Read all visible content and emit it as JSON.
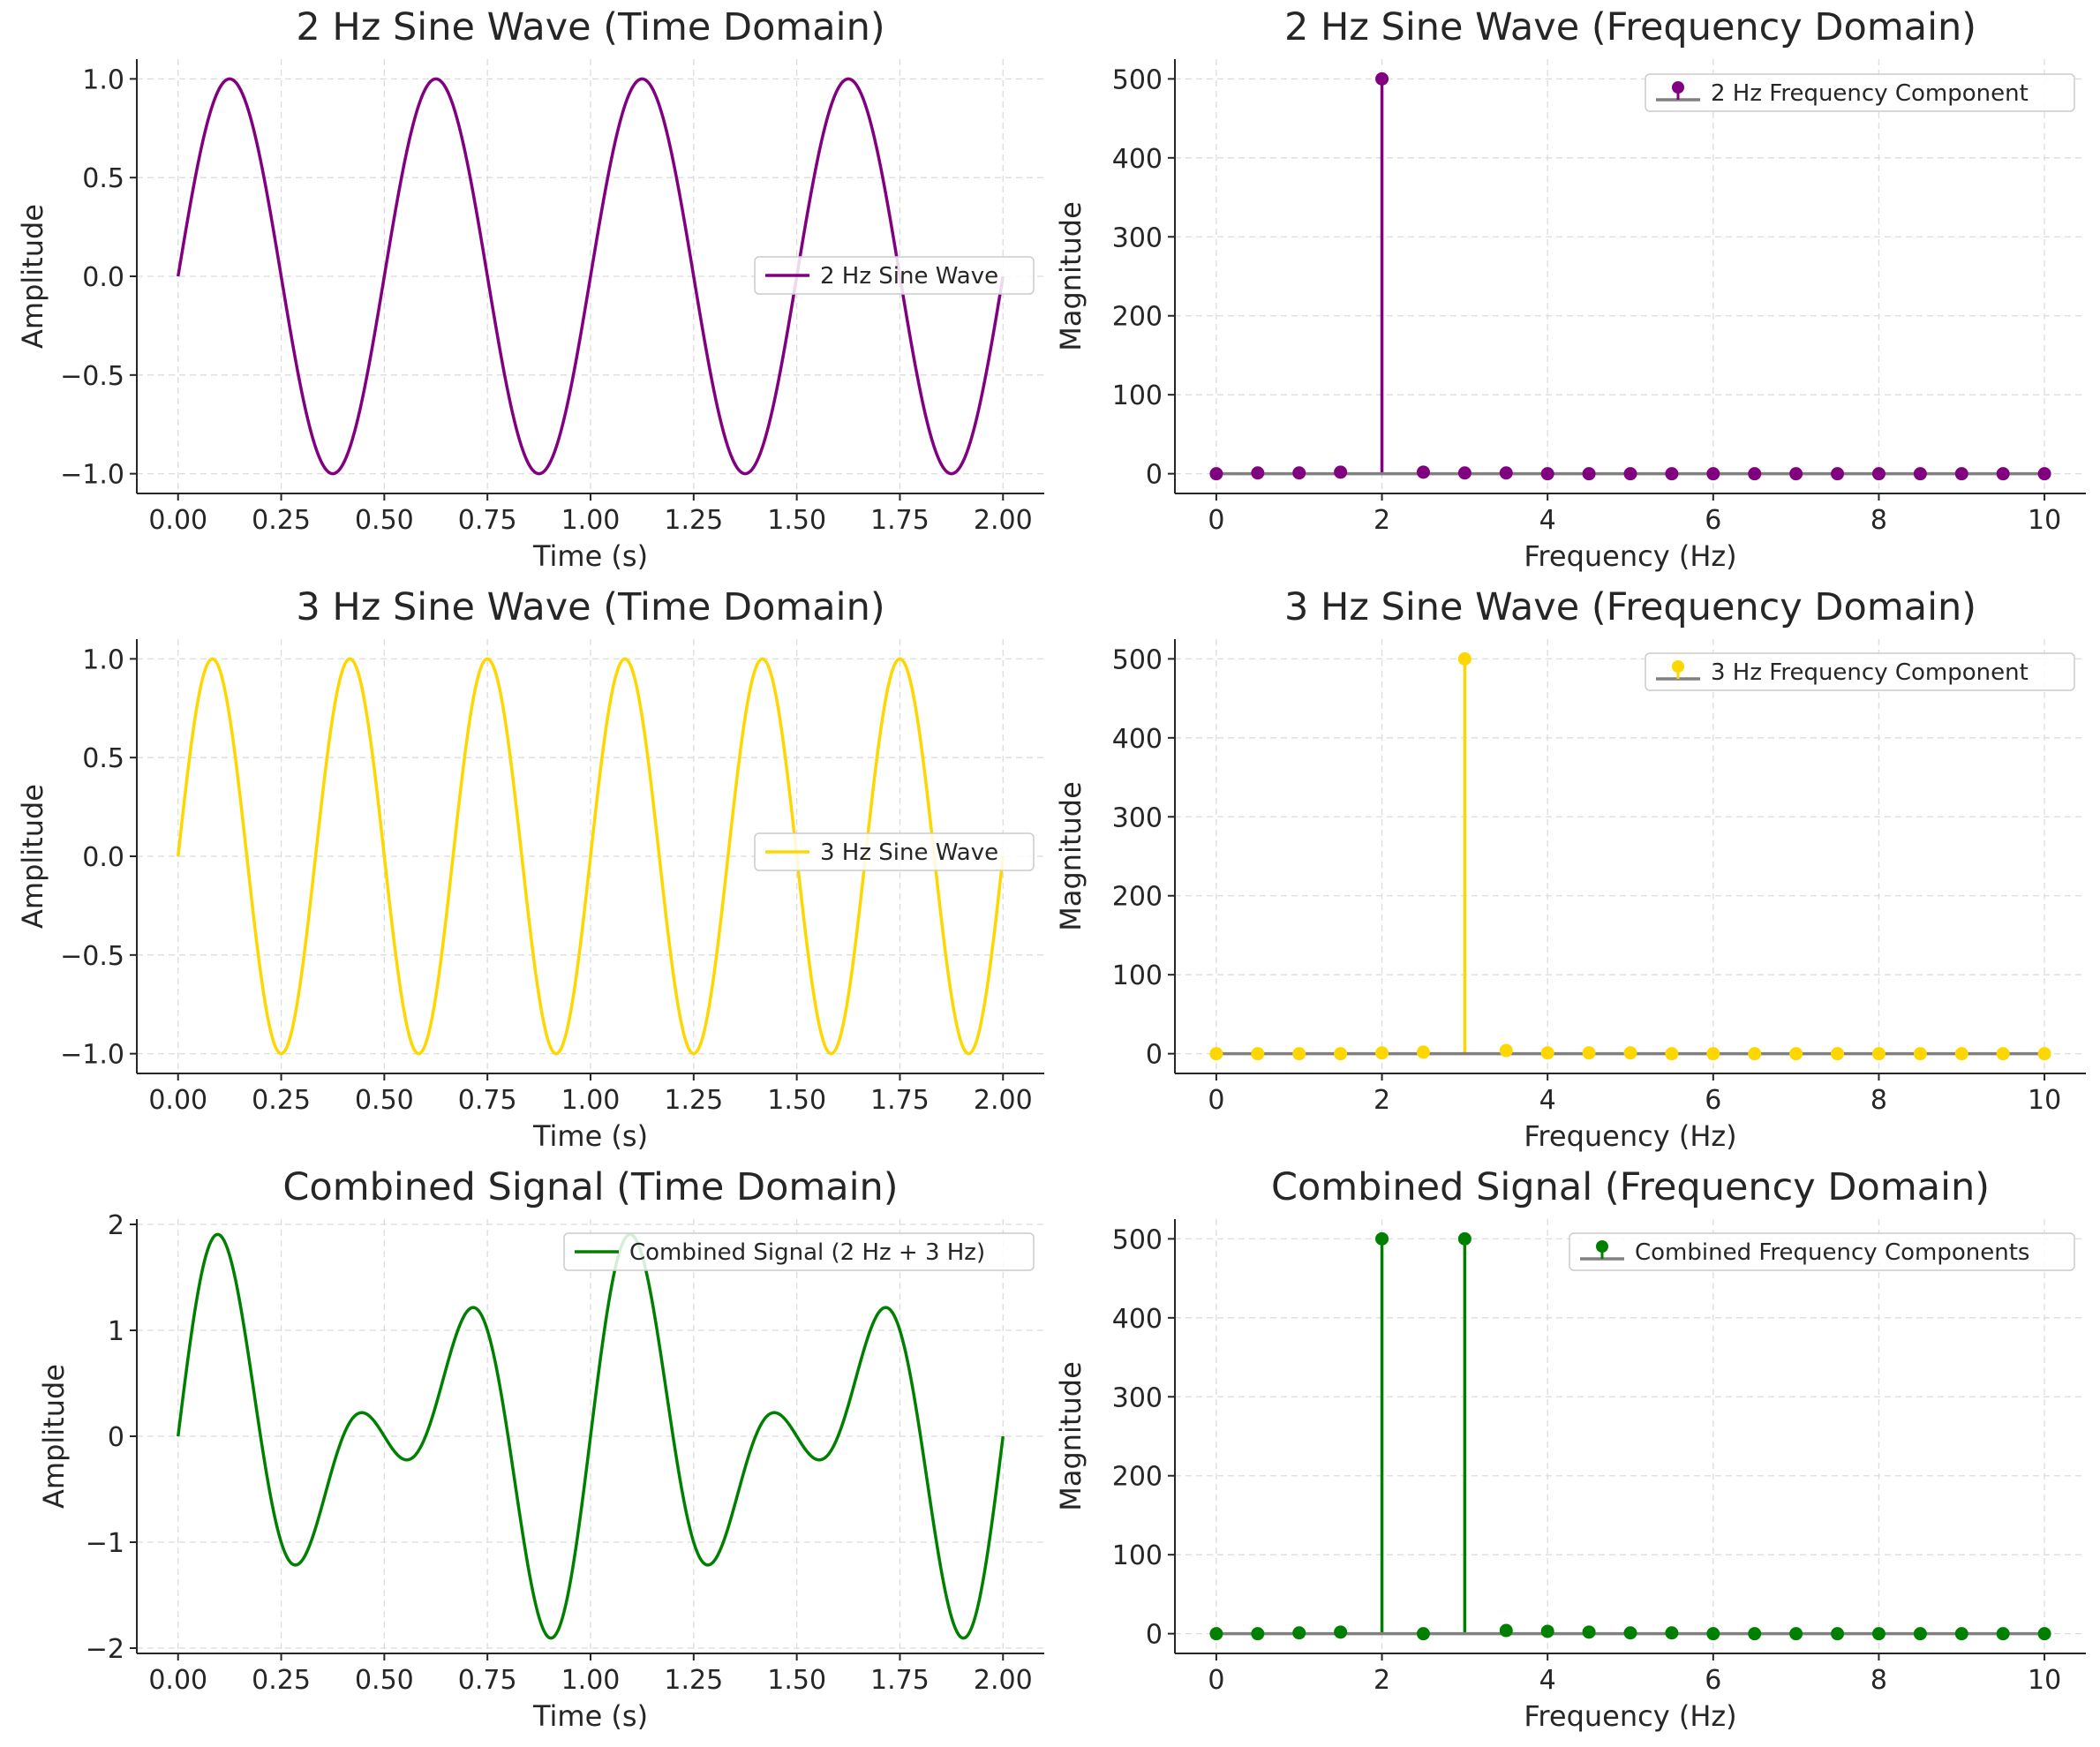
{
  "colors": {
    "purple": "#800080",
    "gold": "#FFD700",
    "green": "#008000",
    "baseline": "#808080"
  },
  "chart_data": [
    {
      "id": "sine2-time",
      "type": "line",
      "title": "2 Hz Sine Wave (Time Domain)",
      "xlabel": "Time (s)",
      "ylabel": "Amplitude",
      "xlim": [
        -0.1,
        2.1
      ],
      "ylim": [
        -1.1,
        1.1
      ],
      "xticks": [
        0,
        0.25,
        0.5,
        0.75,
        1.0,
        1.25,
        1.5,
        1.75,
        2.0
      ],
      "xtick_labels": [
        "0.00",
        "0.25",
        "0.50",
        "0.75",
        "1.00",
        "1.25",
        "1.50",
        "1.75",
        "2.00"
      ],
      "yticks": [
        -1.0,
        -0.5,
        0.0,
        0.5,
        1.0
      ],
      "ytick_labels": [
        "−1.0",
        "−0.5",
        "0.0",
        "0.5",
        "1.0"
      ],
      "grid": true,
      "legend_position": "center-right",
      "series": [
        {
          "name": "2 Hz Sine Wave",
          "color": "#800080",
          "function": "sin(2*pi*2*t)",
          "t_range": [
            0,
            2
          ],
          "samples": 500
        }
      ]
    },
    {
      "id": "sine2-freq",
      "type": "stem",
      "title": "2 Hz Sine Wave (Frequency Domain)",
      "xlabel": "Frequency (Hz)",
      "ylabel": "Magnitude",
      "xlim": [
        -0.5,
        10.5
      ],
      "ylim": [
        -25,
        525
      ],
      "xticks": [
        0,
        2,
        4,
        6,
        8,
        10
      ],
      "xtick_labels": [
        "0",
        "2",
        "4",
        "6",
        "8",
        "10"
      ],
      "yticks": [
        0,
        100,
        200,
        300,
        400,
        500
      ],
      "ytick_labels": [
        "0",
        "100",
        "200",
        "300",
        "400",
        "500"
      ],
      "grid": true,
      "legend_position": "top-right",
      "series": [
        {
          "name": "2 Hz Frequency Component",
          "color": "#800080",
          "x": [
            0,
            0.5,
            1,
            1.5,
            2,
            2.5,
            3,
            3.5,
            4,
            4.5,
            5,
            5.5,
            6,
            6.5,
            7,
            7.5,
            8,
            8.5,
            9,
            9.5,
            10
          ],
          "y": [
            0,
            1,
            1,
            2,
            500,
            2,
            1,
            1,
            0,
            0,
            0,
            0,
            0,
            0,
            0,
            0,
            0,
            0,
            0,
            0,
            0
          ]
        }
      ]
    },
    {
      "id": "sine3-time",
      "type": "line",
      "title": "3 Hz Sine Wave (Time Domain)",
      "xlabel": "Time (s)",
      "ylabel": "Amplitude",
      "xlim": [
        -0.1,
        2.1
      ],
      "ylim": [
        -1.1,
        1.1
      ],
      "xticks": [
        0,
        0.25,
        0.5,
        0.75,
        1.0,
        1.25,
        1.5,
        1.75,
        2.0
      ],
      "xtick_labels": [
        "0.00",
        "0.25",
        "0.50",
        "0.75",
        "1.00",
        "1.25",
        "1.50",
        "1.75",
        "2.00"
      ],
      "yticks": [
        -1.0,
        -0.5,
        0.0,
        0.5,
        1.0
      ],
      "ytick_labels": [
        "−1.0",
        "−0.5",
        "0.0",
        "0.5",
        "1.0"
      ],
      "grid": true,
      "legend_position": "center-right",
      "series": [
        {
          "name": "3 Hz Sine Wave",
          "color": "#FFD700",
          "function": "sin(2*pi*3*t)",
          "t_range": [
            0,
            2
          ],
          "samples": 500
        }
      ]
    },
    {
      "id": "sine3-freq",
      "type": "stem",
      "title": "3 Hz Sine Wave (Frequency Domain)",
      "xlabel": "Frequency (Hz)",
      "ylabel": "Magnitude",
      "xlim": [
        -0.5,
        10.5
      ],
      "ylim": [
        -25,
        525
      ],
      "xticks": [
        0,
        2,
        4,
        6,
        8,
        10
      ],
      "xtick_labels": [
        "0",
        "2",
        "4",
        "6",
        "8",
        "10"
      ],
      "yticks": [
        0,
        100,
        200,
        300,
        400,
        500
      ],
      "ytick_labels": [
        "0",
        "100",
        "200",
        "300",
        "400",
        "500"
      ],
      "grid": true,
      "legend_position": "top-right",
      "series": [
        {
          "name": "3 Hz Frequency Component",
          "color": "#FFD700",
          "x": [
            0,
            0.5,
            1,
            1.5,
            2,
            2.5,
            3,
            3.5,
            4,
            4.5,
            5,
            5.5,
            6,
            6.5,
            7,
            7.5,
            8,
            8.5,
            9,
            9.5,
            10
          ],
          "y": [
            0,
            0,
            0,
            0,
            1,
            2,
            500,
            4,
            1,
            1,
            1,
            0,
            0,
            0,
            0,
            0,
            0,
            0,
            0,
            0,
            0
          ]
        }
      ]
    },
    {
      "id": "combined-time",
      "type": "line",
      "title": "Combined Signal (Time Domain)",
      "xlabel": "Time (s)",
      "ylabel": "Amplitude",
      "xlim": [
        -0.1,
        2.1
      ],
      "ylim": [
        -2.05,
        2.05
      ],
      "xticks": [
        0,
        0.25,
        0.5,
        0.75,
        1.0,
        1.25,
        1.5,
        1.75,
        2.0
      ],
      "xtick_labels": [
        "0.00",
        "0.25",
        "0.50",
        "0.75",
        "1.00",
        "1.25",
        "1.50",
        "1.75",
        "2.00"
      ],
      "yticks": [
        -2,
        -1,
        0,
        1,
        2
      ],
      "ytick_labels": [
        "−2",
        "−1",
        "0",
        "1",
        "2"
      ],
      "grid": true,
      "legend_position": "top-right",
      "series": [
        {
          "name": "Combined Signal (2 Hz + 3 Hz)",
          "color": "#008000",
          "function": "sin(2*pi*2*t) + sin(2*pi*3*t)",
          "t_range": [
            0,
            2
          ],
          "samples": 500
        }
      ]
    },
    {
      "id": "combined-freq",
      "type": "stem",
      "title": "Combined Signal (Frequency Domain)",
      "xlabel": "Frequency (Hz)",
      "ylabel": "Magnitude",
      "xlim": [
        -0.5,
        10.5
      ],
      "ylim": [
        -25,
        525
      ],
      "xticks": [
        0,
        2,
        4,
        6,
        8,
        10
      ],
      "xtick_labels": [
        "0",
        "2",
        "4",
        "6",
        "8",
        "10"
      ],
      "yticks": [
        0,
        100,
        200,
        300,
        400,
        500
      ],
      "ytick_labels": [
        "0",
        "100",
        "200",
        "300",
        "400",
        "500"
      ],
      "grid": true,
      "legend_position": "top-right",
      "series": [
        {
          "name": "Combined Frequency Components",
          "color": "#008000",
          "x": [
            0,
            0.5,
            1,
            1.5,
            2,
            2.5,
            3,
            3.5,
            4,
            4.5,
            5,
            5.5,
            6,
            6.5,
            7,
            7.5,
            8,
            8.5,
            9,
            9.5,
            10
          ],
          "y": [
            0,
            0,
            1,
            2,
            500,
            0,
            500,
            4,
            3,
            2,
            1,
            1,
            0,
            0,
            0,
            0,
            0,
            0,
            0,
            0,
            0
          ]
        }
      ]
    }
  ]
}
